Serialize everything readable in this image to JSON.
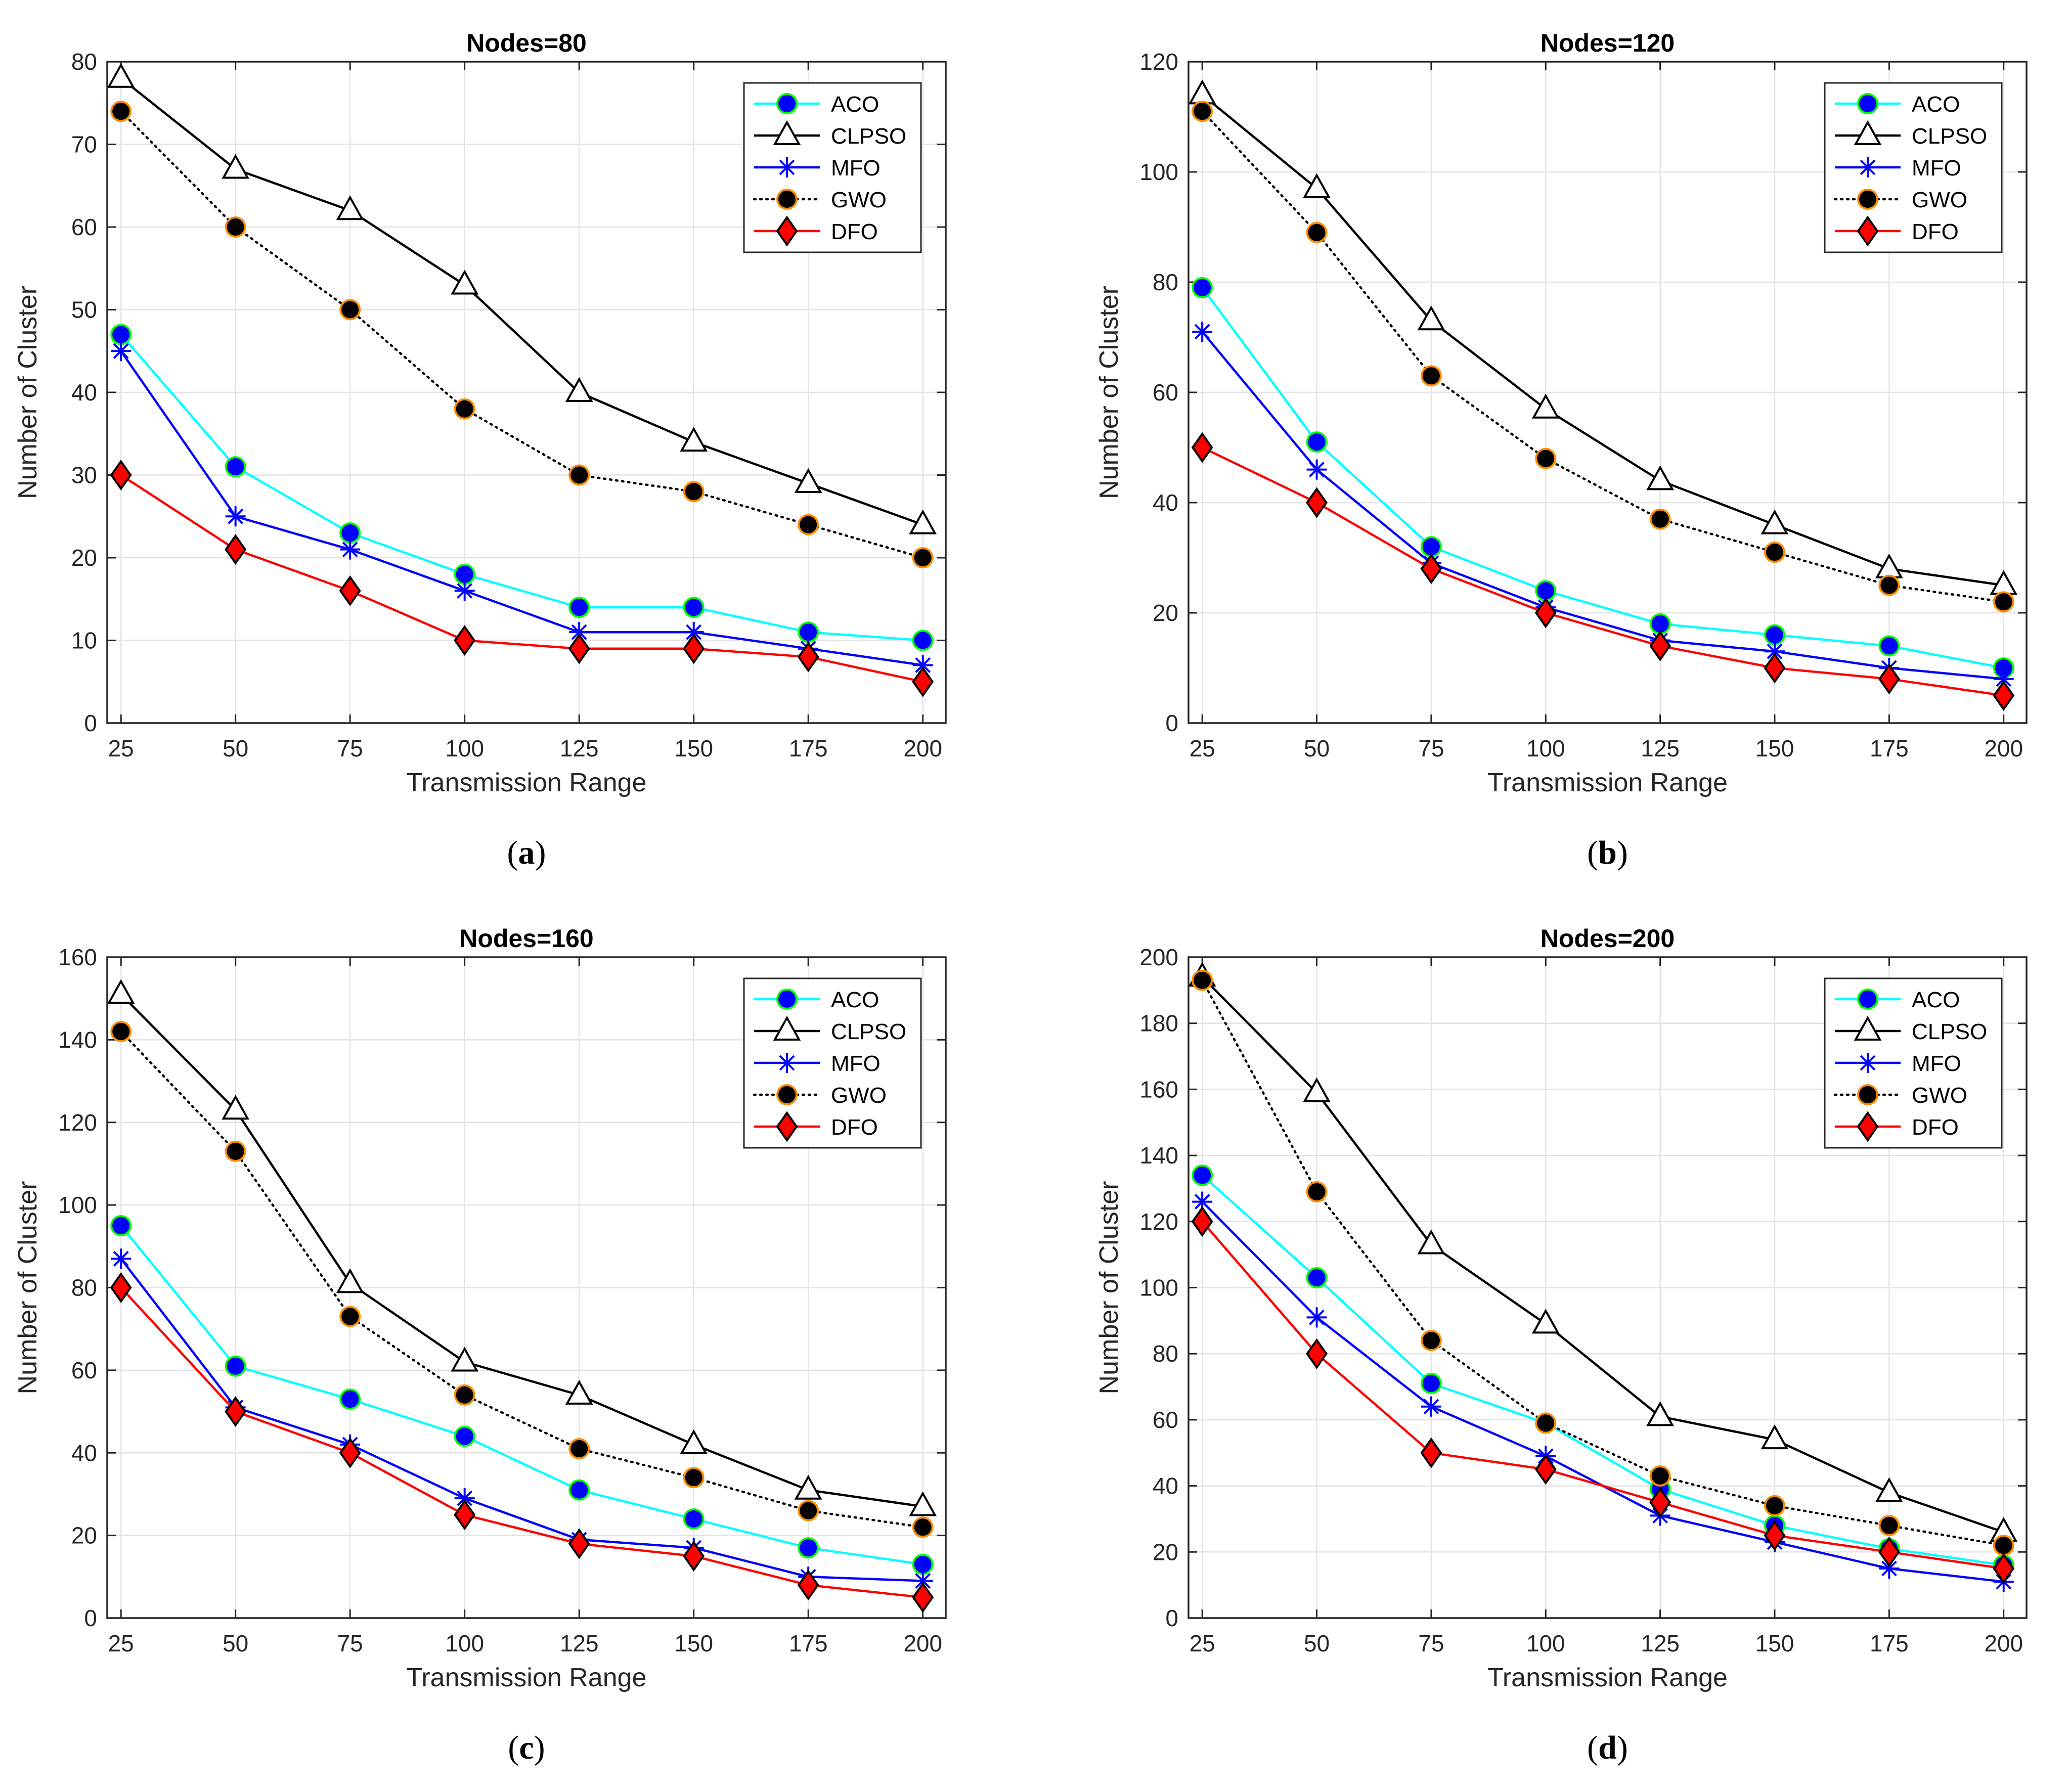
{
  "figure": {
    "series_styles": [
      {
        "name": "ACO",
        "line_color": "#00ffff",
        "marker": "circle",
        "marker_fill": "#0000ff",
        "marker_edge": "#00ff00",
        "dash": "solid"
      },
      {
        "name": "CLPSO",
        "line_color": "#000000",
        "marker": "triangle",
        "marker_fill": "#ffffff",
        "marker_edge": "#000000",
        "dash": "solid"
      },
      {
        "name": "MFO",
        "line_color": "#0000ff",
        "marker": "asterisk",
        "marker_fill": "none",
        "marker_edge": "#0000ff",
        "dash": "solid"
      },
      {
        "name": "GWO",
        "line_color": "#000000",
        "marker": "circle",
        "marker_fill": "#000000",
        "marker_edge": "#ff8c00",
        "dash": "dotted"
      },
      {
        "name": "DFO",
        "line_color": "#ff0000",
        "marker": "diamond",
        "marker_fill": "#ff0000",
        "marker_edge": "#000000",
        "dash": "solid"
      }
    ],
    "grid_color": "#e3e3e3"
  },
  "chart_data": [
    {
      "type": "line",
      "panel_label": "a",
      "title": "Nodes=80",
      "xlabel": "Transmission Range",
      "ylabel": "Number of Cluster",
      "x": [
        25,
        50,
        75,
        100,
        125,
        150,
        175,
        200
      ],
      "xticks": [
        "25",
        "50",
        "75",
        "100",
        "125",
        "150",
        "175",
        "200"
      ],
      "yticks": [
        "0",
        "10",
        "20",
        "30",
        "40",
        "50",
        "60",
        "70",
        "80"
      ],
      "ylim": [
        0,
        80
      ],
      "xlim": [
        22,
        205
      ],
      "grid": true,
      "legend": "top-right",
      "series": [
        {
          "name": "ACO",
          "values": [
            47,
            31,
            23,
            18,
            14,
            14,
            11,
            10
          ]
        },
        {
          "name": "CLPSO",
          "values": [
            78,
            67,
            62,
            53,
            40,
            34,
            29,
            24
          ]
        },
        {
          "name": "MFO",
          "values": [
            45,
            25,
            21,
            16,
            11,
            11,
            9,
            7
          ]
        },
        {
          "name": "GWO",
          "values": [
            74,
            60,
            50,
            38,
            30,
            28,
            24,
            20
          ]
        },
        {
          "name": "DFO",
          "values": [
            30,
            21,
            16,
            10,
            9,
            9,
            8,
            5
          ]
        }
      ]
    },
    {
      "type": "line",
      "panel_label": "b",
      "title": "Nodes=120",
      "xlabel": "Transmission Range",
      "ylabel": "Number of Cluster",
      "x": [
        25,
        50,
        75,
        100,
        125,
        150,
        175,
        200
      ],
      "xticks": [
        "25",
        "50",
        "75",
        "100",
        "125",
        "150",
        "175",
        "200"
      ],
      "yticks": [
        "0",
        "20",
        "40",
        "60",
        "80",
        "100",
        "120"
      ],
      "ylim": [
        0,
        120
      ],
      "xlim": [
        22,
        205
      ],
      "grid": true,
      "legend": "top-right",
      "series": [
        {
          "name": "ACO",
          "values": [
            79,
            51,
            32,
            24,
            18,
            16,
            14,
            10
          ]
        },
        {
          "name": "CLPSO",
          "values": [
            114,
            97,
            73,
            57,
            44,
            36,
            28,
            25
          ]
        },
        {
          "name": "MFO",
          "values": [
            71,
            46,
            29,
            21,
            15,
            13,
            10,
            8
          ]
        },
        {
          "name": "GWO",
          "values": [
            111,
            89,
            63,
            48,
            37,
            31,
            25,
            22
          ]
        },
        {
          "name": "DFO",
          "values": [
            50,
            40,
            28,
            20,
            14,
            10,
            8,
            5
          ]
        }
      ]
    },
    {
      "type": "line",
      "panel_label": "c",
      "title": "Nodes=160",
      "xlabel": "Transmission Range",
      "ylabel": "Number of Cluster",
      "x": [
        25,
        50,
        75,
        100,
        125,
        150,
        175,
        200
      ],
      "xticks": [
        "25",
        "50",
        "75",
        "100",
        "125",
        "150",
        "175",
        "200"
      ],
      "yticks": [
        "0",
        "20",
        "40",
        "60",
        "80",
        "100",
        "120",
        "140",
        "160"
      ],
      "ylim": [
        0,
        160
      ],
      "xlim": [
        22,
        205
      ],
      "grid": true,
      "legend": "top-right",
      "series": [
        {
          "name": "ACO",
          "values": [
            95,
            61,
            53,
            44,
            31,
            24,
            17,
            13
          ]
        },
        {
          "name": "CLPSO",
          "values": [
            151,
            123,
            81,
            62,
            54,
            42,
            31,
            27
          ]
        },
        {
          "name": "MFO",
          "values": [
            87,
            51,
            42,
            29,
            19,
            17,
            10,
            9
          ]
        },
        {
          "name": "GWO",
          "values": [
            142,
            113,
            73,
            54,
            41,
            34,
            26,
            22
          ]
        },
        {
          "name": "DFO",
          "values": [
            80,
            50,
            40,
            25,
            18,
            15,
            8,
            5
          ]
        }
      ]
    },
    {
      "type": "line",
      "panel_label": "d",
      "title": "Nodes=200",
      "xlabel": "Transmission Range",
      "ylabel": "Number of Cluster",
      "x": [
        25,
        50,
        75,
        100,
        125,
        150,
        175,
        200
      ],
      "xticks": [
        "25",
        "50",
        "75",
        "100",
        "125",
        "150",
        "175",
        "200"
      ],
      "yticks": [
        "0",
        "20",
        "40",
        "60",
        "80",
        "100",
        "120",
        "140",
        "160",
        "180",
        "200"
      ],
      "ylim": [
        0,
        200
      ],
      "xlim": [
        22,
        205
      ],
      "grid": true,
      "legend": "top-right",
      "series": [
        {
          "name": "ACO",
          "values": [
            134,
            103,
            71,
            59,
            39,
            28,
            21,
            16
          ]
        },
        {
          "name": "CLPSO",
          "values": [
            194,
            159,
            113,
            89,
            61,
            54,
            38,
            26
          ]
        },
        {
          "name": "MFO",
          "values": [
            126,
            91,
            64,
            49,
            31,
            23,
            15,
            11
          ]
        },
        {
          "name": "GWO",
          "values": [
            193,
            129,
            84,
            59,
            43,
            34,
            28,
            22
          ]
        },
        {
          "name": "DFO",
          "values": [
            120,
            80,
            50,
            45,
            35,
            25,
            20,
            15
          ]
        }
      ]
    }
  ]
}
